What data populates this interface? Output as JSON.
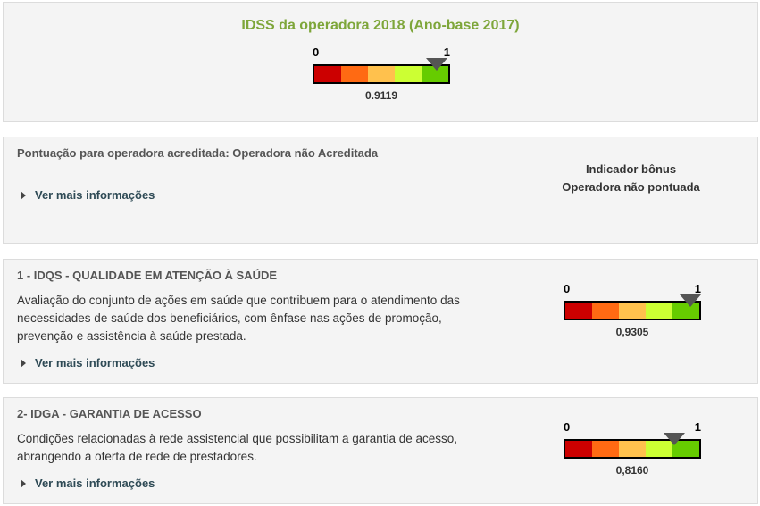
{
  "header": {
    "title": "IDSS da operadora 2018 (Ano-base 2017)",
    "gauge": {
      "min_label": "0",
      "max_label": "1",
      "value_label": "0.9119",
      "value": 0.9119
    }
  },
  "accreditation": {
    "text": "Pontuação para operadora acreditada: Operadora não Acreditada",
    "more_label": "Ver mais informações",
    "bonus_title": "Indicador bônus",
    "bonus_status": "Operadora não pontuada"
  },
  "sections": [
    {
      "title": "1 - IDQS - QUALIDADE EM ATENÇÃO À SAÚDE",
      "desc_lines": [
        "Avaliação do conjunto de ações em saúde que contribuem para o atendimento das",
        "necessidades de saúde dos beneficiários, com ênfase nas ações de promoção,",
        "prevenção e assistência à saúde prestada."
      ],
      "more_label": "Ver mais informações",
      "gauge": {
        "min_label": "0",
        "max_label": "1",
        "value_label": "0,9305",
        "value": 0.9305
      }
    },
    {
      "title": "2- IDGA - GARANTIA DE ACESSO",
      "desc_lines": [
        "Condições relacionadas à rede assistencial que possibilitam a garantia de acesso,",
        "abrangendo a oferta de rede de prestadores."
      ],
      "more_label": "Ver mais informações",
      "gauge": {
        "min_label": "0",
        "max_label": "1",
        "value_label": "0,8160",
        "value": 0.816
      }
    }
  ],
  "colors": {
    "title_green": "#7ea63a",
    "gauge_segments": [
      "#cc0000",
      "#ff6a13",
      "#ffc14d",
      "#ccff33",
      "#66cc00"
    ],
    "marker": "#555555"
  }
}
